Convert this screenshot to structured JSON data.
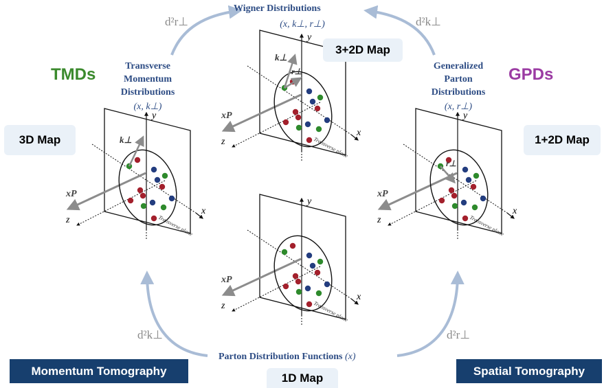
{
  "top": {
    "title": "Wigner Distributions",
    "vars": "(x, k⊥, r⊥)",
    "map": "3+2D Map"
  },
  "left": {
    "side_label": "TMDs",
    "title_lines": [
      "Transverse",
      "Momentum",
      "Distributions"
    ],
    "vars": "(x, k⊥)",
    "map": "3D Map",
    "integral": "d²r⊥"
  },
  "right": {
    "side_label": "GPDs",
    "title_lines": [
      "Generalized",
      "Parton",
      "Distributions"
    ],
    "vars": "(x, r⊥)",
    "map": "1+2D Map",
    "integral": "d²k⊥"
  },
  "bottom": {
    "title": "Parton Distribution Functions",
    "var": "(x)",
    "map": "1D Map",
    "left_integral": "d²k⊥",
    "right_integral": "d²r⊥"
  },
  "footer": {
    "left": "Momentum Tomography",
    "right": "Spatial Tomography"
  },
  "panel_labels": {
    "y": "y",
    "x": "x",
    "z": "z",
    "xP": "xP",
    "plane": "Transverse plane",
    "k_vec": "k⊥",
    "r_vec": "r⊥"
  },
  "colors": {
    "navy": "#2d4c84",
    "arrow": "#a9bcd6",
    "red": "#a3202c",
    "blue": "#233d7f",
    "green": "#2e8a2c",
    "map_box": "#eaf1f8",
    "dark_box": "#173f6e"
  }
}
